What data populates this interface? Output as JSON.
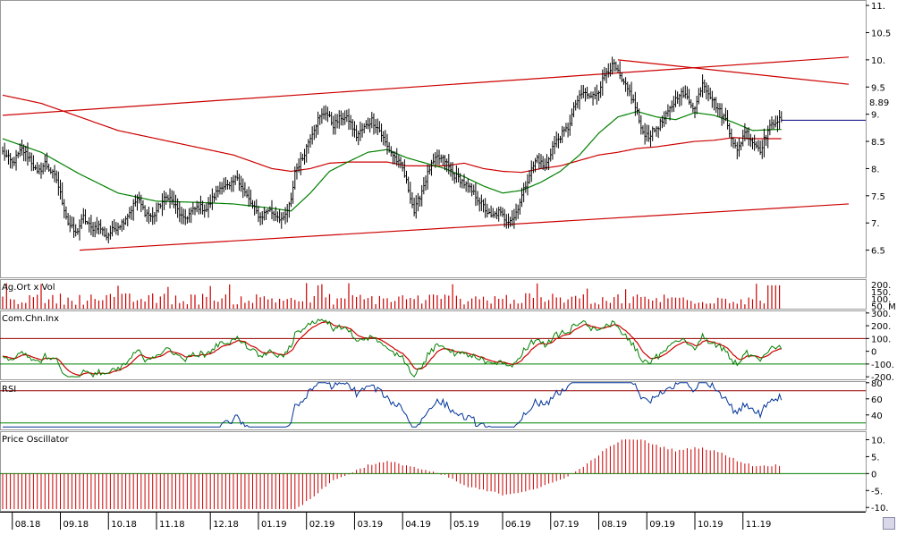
{
  "colors": {
    "price_bar": "#000000",
    "ma_short": "#008000",
    "ma_long": "#cc0000",
    "channel": "#cc0000",
    "hline": "#000080",
    "volume": "#cc0000",
    "cci_main": "#008000",
    "cci_signal": "#cc0000",
    "rsi": "#003399",
    "osc_pos": "#cc0000",
    "ref_red": "#990000",
    "ref_green": "#008000",
    "frame": "#999999"
  },
  "chart_data": [
    {
      "type": "ohlc",
      "panel": "price",
      "title": "",
      "y_ticks": [
        "11.",
        "10.5",
        "10.",
        "9.5",
        "9.",
        "8.5",
        "8.",
        "7.5",
        "7.",
        "6.5"
      ],
      "y_tick_values": [
        11,
        10.5,
        10,
        9.5,
        9,
        8.5,
        8,
        7.5,
        7,
        6.5
      ],
      "ylim": [
        6.0,
        11.1
      ],
      "last_value_label": "8.89",
      "last_value": 8.89,
      "price_path": [
        [
          0,
          8.3
        ],
        [
          5,
          8.1
        ],
        [
          10,
          8.35
        ],
        [
          14,
          8.2
        ],
        [
          18,
          7.9
        ],
        [
          22,
          8.1
        ],
        [
          28,
          7.8
        ],
        [
          31,
          7.4
        ],
        [
          34,
          7.0
        ],
        [
          38,
          6.8
        ],
        [
          42,
          7.1
        ],
        [
          46,
          6.9
        ],
        [
          50,
          6.95
        ],
        [
          54,
          6.75
        ],
        [
          58,
          6.9
        ],
        [
          62,
          7.0
        ],
        [
          66,
          7.2
        ],
        [
          70,
          7.45
        ],
        [
          74,
          7.2
        ],
        [
          78,
          7.1
        ],
        [
          82,
          7.35
        ],
        [
          86,
          7.5
        ],
        [
          90,
          7.3
        ],
        [
          94,
          7.05
        ],
        [
          98,
          7.2
        ],
        [
          102,
          7.3
        ],
        [
          106,
          7.25
        ],
        [
          110,
          7.5
        ],
        [
          114,
          7.7
        ],
        [
          118,
          7.65
        ],
        [
          122,
          7.85
        ],
        [
          126,
          7.55
        ],
        [
          130,
          7.3
        ],
        [
          134,
          7.1
        ],
        [
          138,
          7.25
        ],
        [
          142,
          7.15
        ],
        [
          146,
          7.05
        ],
        [
          150,
          7.4
        ],
        [
          152,
          7.95
        ],
        [
          156,
          8.2
        ],
        [
          160,
          8.6
        ],
        [
          164,
          8.9
        ],
        [
          168,
          9.05
        ],
        [
          172,
          8.8
        ],
        [
          176,
          8.95
        ],
        [
          180,
          8.9
        ],
        [
          184,
          8.6
        ],
        [
          188,
          8.75
        ],
        [
          192,
          8.9
        ],
        [
          196,
          8.7
        ],
        [
          200,
          8.4
        ],
        [
          204,
          8.2
        ],
        [
          208,
          8.0
        ],
        [
          212,
          7.5
        ],
        [
          214,
          7.2
        ],
        [
          218,
          7.6
        ],
        [
          222,
          8.0
        ],
        [
          226,
          8.2
        ],
        [
          230,
          8.15
        ],
        [
          234,
          7.9
        ],
        [
          238,
          7.8
        ],
        [
          242,
          7.65
        ],
        [
          246,
          7.5
        ],
        [
          250,
          7.3
        ],
        [
          254,
          7.1
        ],
        [
          258,
          7.2
        ],
        [
          262,
          7.05
        ],
        [
          266,
          7.1
        ],
        [
          270,
          7.5
        ],
        [
          274,
          7.9
        ],
        [
          278,
          8.2
        ],
        [
          282,
          8.0
        ],
        [
          286,
          8.4
        ],
        [
          290,
          8.6
        ],
        [
          294,
          8.75
        ],
        [
          298,
          9.2
        ],
        [
          302,
          9.4
        ],
        [
          306,
          9.3
        ],
        [
          310,
          9.45
        ],
        [
          314,
          9.8
        ],
        [
          318,
          9.9
        ],
        [
          322,
          9.6
        ],
        [
          326,
          9.4
        ],
        [
          330,
          9.05
        ],
        [
          332,
          8.7
        ],
        [
          336,
          8.6
        ],
        [
          340,
          8.75
        ],
        [
          344,
          8.9
        ],
        [
          348,
          9.15
        ],
        [
          352,
          9.4
        ],
        [
          356,
          9.3
        ],
        [
          360,
          9.1
        ],
        [
          364,
          9.6
        ],
        [
          368,
          9.35
        ],
        [
          372,
          9.1
        ],
        [
          376,
          8.9
        ],
        [
          380,
          8.5
        ],
        [
          382,
          8.3
        ],
        [
          386,
          8.7
        ],
        [
          390,
          8.5
        ],
        [
          394,
          8.35
        ],
        [
          398,
          8.7
        ],
        [
          402,
          8.89
        ]
      ],
      "ma_short_path": [
        [
          0,
          8.55
        ],
        [
          20,
          8.3
        ],
        [
          40,
          7.9
        ],
        [
          60,
          7.55
        ],
        [
          80,
          7.4
        ],
        [
          100,
          7.38
        ],
        [
          120,
          7.35
        ],
        [
          140,
          7.27
        ],
        [
          150,
          7.22
        ],
        [
          160,
          7.55
        ],
        [
          170,
          7.95
        ],
        [
          180,
          8.13
        ],
        [
          190,
          8.3
        ],
        [
          200,
          8.35
        ],
        [
          210,
          8.2
        ],
        [
          220,
          8.1
        ],
        [
          230,
          8.0
        ],
        [
          240,
          7.85
        ],
        [
          250,
          7.68
        ],
        [
          260,
          7.55
        ],
        [
          270,
          7.6
        ],
        [
          280,
          7.75
        ],
        [
          290,
          7.95
        ],
        [
          300,
          8.25
        ],
        [
          310,
          8.65
        ],
        [
          320,
          8.95
        ],
        [
          330,
          9.05
        ],
        [
          340,
          8.95
        ],
        [
          350,
          8.9
        ],
        [
          360,
          9.03
        ],
        [
          370,
          8.98
        ],
        [
          380,
          8.85
        ],
        [
          390,
          8.7
        ],
        [
          402,
          8.72
        ]
      ],
      "ma_long_path": [
        [
          0,
          9.35
        ],
        [
          20,
          9.2
        ],
        [
          40,
          8.95
        ],
        [
          60,
          8.7
        ],
        [
          80,
          8.55
        ],
        [
          100,
          8.4
        ],
        [
          120,
          8.25
        ],
        [
          140,
          8.0
        ],
        [
          150,
          7.95
        ],
        [
          160,
          8.0
        ],
        [
          170,
          8.1
        ],
        [
          180,
          8.12
        ],
        [
          190,
          8.12
        ],
        [
          200,
          8.12
        ],
        [
          210,
          8.05
        ],
        [
          220,
          8.05
        ],
        [
          230,
          8.05
        ],
        [
          240,
          8.1
        ],
        [
          250,
          8.0
        ],
        [
          260,
          7.95
        ],
        [
          270,
          7.93
        ],
        [
          280,
          8.0
        ],
        [
          290,
          8.05
        ],
        [
          300,
          8.15
        ],
        [
          310,
          8.25
        ],
        [
          320,
          8.3
        ],
        [
          330,
          8.37
        ],
        [
          340,
          8.4
        ],
        [
          350,
          8.45
        ],
        [
          360,
          8.5
        ],
        [
          370,
          8.52
        ],
        [
          380,
          8.57
        ],
        [
          390,
          8.55
        ],
        [
          402,
          8.55
        ]
      ],
      "channel_lines": [
        {
          "from": [
            0,
            8.98
          ],
          "to": [
            440,
            10.05
          ]
        },
        {
          "from": [
            40,
            6.5
          ],
          "to": [
            440,
            7.35
          ]
        },
        {
          "from": [
            320,
            10.0
          ],
          "to": [
            440,
            9.55
          ]
        }
      ],
      "hline": {
        "from_index": 405,
        "value": 8.89
      }
    },
    {
      "type": "bar",
      "panel": "volume",
      "title": "Ag.Ort x Vol",
      "y_ticks": [
        "200.",
        "150.",
        "100.",
        "50. M"
      ]
    },
    {
      "type": "line",
      "panel": "cci",
      "title": "Com.Chn.Inx",
      "ylim": [
        -220,
        320
      ],
      "y_ticks": [
        "300.",
        "200.",
        "100.",
        "0",
        "-100.",
        "-200."
      ],
      "y_tick_values": [
        300,
        200,
        100,
        0,
        -100,
        -200
      ],
      "reference_lines": [
        100,
        -100
      ]
    },
    {
      "type": "line",
      "panel": "rsi",
      "title": "RSI",
      "ylim": [
        22,
        82
      ],
      "y_ticks": [
        "80",
        "60",
        "40"
      ],
      "y_tick_values": [
        80,
        60,
        40
      ],
      "reference_lines": [
        70,
        30
      ]
    },
    {
      "type": "bar",
      "panel": "oscillator",
      "title": "Price Oscillator",
      "ylim": [
        -11,
        12.5
      ],
      "y_ticks": [
        "10.",
        "5.",
        "0",
        "-5.",
        "-10."
      ],
      "y_tick_values": [
        10,
        5,
        0,
        -5,
        -10
      ]
    }
  ],
  "x_axis": {
    "labels": [
      "08.18",
      "09.18",
      "10.18",
      "11.18",
      "12.18",
      "01.19",
      "02.19",
      "03.19",
      "04.19",
      "05.19",
      "06.19",
      "07.19",
      "08.19",
      "09.19",
      "10.19",
      "11.19"
    ],
    "label_indices": [
      5,
      30,
      55,
      80,
      108,
      133,
      158,
      183,
      208,
      233,
      260,
      285,
      310,
      335,
      360,
      385
    ]
  }
}
